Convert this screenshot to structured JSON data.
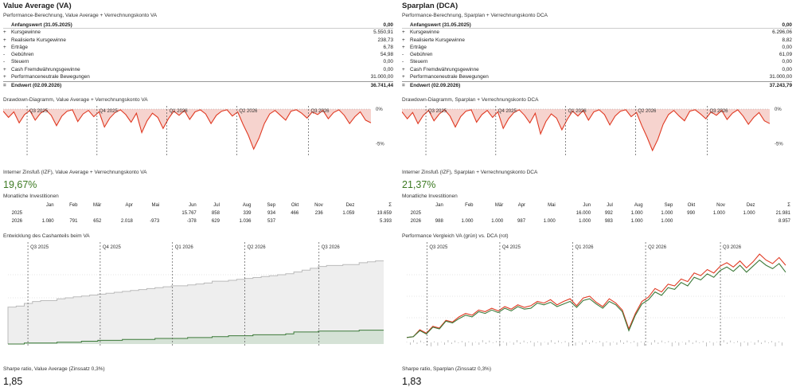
{
  "left": {
    "title": "Value Average (VA)",
    "perf_subtitle": "Performance-Berechnung, Value Average + Verrechnungskonto VA",
    "perf_rows": [
      {
        "op": "",
        "label": "Anfangswert (31.05.2025)",
        "value": "0,00",
        "kind": "start"
      },
      {
        "op": "+",
        "label": "Kursgewinne",
        "value": "5.550,91",
        "kind": ""
      },
      {
        "op": "+",
        "label": "Realisierte Kursgewinne",
        "value": "238,73",
        "kind": ""
      },
      {
        "op": "+",
        "label": "Erträge",
        "value": "6,78",
        "kind": ""
      },
      {
        "op": "-",
        "label": "Gebühren",
        "value": "54,98",
        "kind": ""
      },
      {
        "op": "-",
        "label": "Steuern",
        "value": "0,00",
        "kind": ""
      },
      {
        "op": "+",
        "label": "Cash Fremdwährungsgewinne",
        "value": "0,00",
        "kind": ""
      },
      {
        "op": "+",
        "label": "Performanceneutrale Bewegungen",
        "value": "31.000,00",
        "kind": ""
      },
      {
        "op": "=",
        "label": "Endwert (02.09.2026)",
        "value": "36.741,44",
        "kind": "end"
      }
    ],
    "dd_subtitle": "Drawdown-Diagramm, Value Average + Verrechnungskonto VA",
    "irr_subtitle": "Interner Zinsfuß (IZF), Value Average + Verrechnungskonto VA",
    "irr_value": "19,67%",
    "inv_subtitle": "Monatliche Investitionen",
    "inv_header": [
      "",
      "Jan",
      "Feb",
      "Mär",
      "Apr",
      "Mai",
      "Jun",
      "Jul",
      "Aug",
      "Sep",
      "Okt",
      "Nov",
      "Dez",
      "Σ"
    ],
    "inv_rows": [
      [
        "2025",
        "",
        "",
        "",
        "",
        "",
        "15.767",
        "858",
        "339",
        "934",
        "466",
        "236",
        "1.059",
        "19.659"
      ],
      [
        "2026",
        "1.080",
        "791",
        "652",
        "2.018",
        "-973",
        "-378",
        "629",
        "1.036",
        "537",
        "",
        "",
        "",
        "5.393"
      ]
    ],
    "bottom_subtitle": "Entwicklung des Cashanteils beim VA",
    "sharpe_subtitle": "Sharpe ratio, Value Average (Zinssatz 0,3%)",
    "sharpe_value": "1,85"
  },
  "right": {
    "title": "Sparplan (DCA)",
    "perf_subtitle": "Performance-Berechnung, Sparplan + Verrechnungskonto DCA",
    "perf_rows": [
      {
        "op": "",
        "label": "Anfangswert (31.05.2025)",
        "value": "0,00",
        "kind": "start"
      },
      {
        "op": "+",
        "label": "Kursgewinne",
        "value": "6.296,06",
        "kind": ""
      },
      {
        "op": "+",
        "label": "Realisierte Kursgewinne",
        "value": "8,82",
        "kind": ""
      },
      {
        "op": "+",
        "label": "Erträge",
        "value": "0,00",
        "kind": ""
      },
      {
        "op": "-",
        "label": "Gebühren",
        "value": "61,09",
        "kind": ""
      },
      {
        "op": "-",
        "label": "Steuern",
        "value": "0,00",
        "kind": ""
      },
      {
        "op": "+",
        "label": "Cash Fremdwährungsgewinne",
        "value": "0,00",
        "kind": ""
      },
      {
        "op": "+",
        "label": "Performanceneutrale Bewegungen",
        "value": "31.000,00",
        "kind": ""
      },
      {
        "op": "=",
        "label": "Endwert (02.09.2026)",
        "value": "37.243,79",
        "kind": "end"
      }
    ],
    "dd_subtitle": "Drawdown-Diagramm, Sparplan + Verrechnungskonto DCA",
    "irr_subtitle": "Interner Zinsfuß (IZF), Sparplan + Verrechnungskonto DCA",
    "irr_value": "21,37%",
    "inv_subtitle": "Monatliche Investitionen",
    "inv_header": [
      "",
      "Jan",
      "Feb",
      "Mär",
      "Apr",
      "Mai",
      "Jun",
      "Jul",
      "Aug",
      "Sep",
      "Okt",
      "Nov",
      "Dez",
      "Σ"
    ],
    "inv_rows": [
      [
        "2025",
        "",
        "",
        "",
        "",
        "",
        "16.000",
        "992",
        "1.000",
        "1.000",
        "990",
        "1.000",
        "1.000",
        "21.981"
      ],
      [
        "2026",
        "988",
        "1.000",
        "1.000",
        "987",
        "1.000",
        "1.000",
        "983",
        "1.000",
        "1.000",
        "",
        "",
        "",
        "8.957"
      ]
    ],
    "bottom_subtitle": "Performance Vergleich VA (grün) vs. DCA (rot)",
    "sharpe_subtitle": "Sharpe ratio, Sparplan (Zinssatz 0,3%)",
    "sharpe_value": "1,83"
  },
  "chart_data": [
    {
      "type": "area",
      "id": "dd-left",
      "quarter_labels": [
        "Q3 2025",
        "Q4 2025",
        "Q1 2026",
        "Q2 2026",
        "Q3 2026"
      ],
      "y_tick_labels": [
        "0%",
        "-5%"
      ],
      "ylim": [
        -6,
        0
      ],
      "series": [
        {
          "values": [
            -0.3,
            -1.2,
            -0.4,
            -2.0,
            -0.8,
            -0.2,
            -1.6,
            -0.6,
            -0.1,
            -0.9,
            -2.4,
            -1.0,
            -0.3,
            -0.1,
            -1.8,
            -0.7,
            -0.2,
            -1.1,
            -0.4,
            -2.6,
            -1.3,
            -0.5,
            -0.1,
            -0.8,
            -1.9,
            -0.6,
            -3.4,
            -1.7,
            -0.6,
            -1.2,
            -2.8,
            -1.4,
            -0.3,
            -0.9,
            -0.2,
            -1.5,
            -0.4,
            -0.1,
            -0.7,
            -2.1,
            -0.9,
            -0.3,
            -0.1,
            -1.0,
            -0.4,
            -2.2,
            -3.8,
            -5.8,
            -4.2,
            -2.1,
            -0.7,
            -0.2,
            -0.9,
            -1.6,
            -0.3,
            -0.1,
            -0.6,
            -1.3,
            -0.4,
            -0.8,
            -0.2,
            -1.4,
            -0.5,
            -0.1,
            -0.9,
            -2.1,
            -1.1,
            -0.4,
            -1.6,
            -2.0
          ]
        }
      ]
    },
    {
      "type": "area",
      "id": "dd-right",
      "quarter_labels": [
        "Q3 2025",
        "Q4 2025",
        "Q1 2026",
        "Q2 2026",
        "Q3 2026"
      ],
      "y_tick_labels": [
        "0%",
        "-5%"
      ],
      "ylim": [
        -6,
        0
      ],
      "series": [
        {
          "values": [
            -0.4,
            -1.4,
            -0.5,
            -2.1,
            -0.9,
            -0.2,
            -1.7,
            -0.7,
            -0.1,
            -1.0,
            -2.6,
            -1.1,
            -0.3,
            -0.1,
            -1.9,
            -0.8,
            -0.2,
            -1.2,
            -0.4,
            -2.8,
            -1.4,
            -0.5,
            -0.1,
            -0.9,
            -2.0,
            -0.6,
            -3.6,
            -1.8,
            -0.7,
            -1.3,
            -3.0,
            -1.5,
            -0.3,
            -1.0,
            -0.2,
            -1.6,
            -0.4,
            -0.1,
            -0.8,
            -2.3,
            -1.0,
            -0.3,
            -0.1,
            -1.1,
            -0.5,
            -2.4,
            -4.1,
            -6.0,
            -4.4,
            -2.2,
            -0.8,
            -0.2,
            -1.0,
            -1.7,
            -0.3,
            -0.1,
            -0.7,
            -1.4,
            -0.4,
            -0.9,
            -0.2,
            -1.5,
            -0.6,
            -0.1,
            -1.0,
            -2.2,
            -1.2,
            -0.5,
            -1.7,
            -2.1
          ]
        }
      ]
    },
    {
      "type": "area",
      "id": "cash-left",
      "quarter_labels": [
        "Q3 2025",
        "Q4 2025",
        "Q1 2026",
        "Q2 2026",
        "Q3 2026"
      ],
      "series": [
        {
          "values": [
            0.4,
            0.41,
            0.44,
            0.46,
            0.47,
            0.47,
            0.49,
            0.5,
            0.51,
            0.52,
            0.53,
            0.54,
            0.55,
            0.56,
            0.57,
            0.58,
            0.59,
            0.6,
            0.61,
            0.62,
            0.63,
            0.63,
            0.64,
            0.65,
            0.66,
            0.68,
            0.68,
            0.69,
            0.7,
            0.71,
            0.72,
            0.73,
            0.74,
            0.75,
            0.76,
            0.78,
            0.8,
            0.82,
            0.84,
            0.85,
            0.85,
            0.86,
            0.86,
            0.88,
            0.89,
            0.9,
            0.9
          ]
        },
        {
          "values": [
            0.0,
            0.0,
            0.01,
            0.01,
            0.01,
            0.01,
            0.02,
            0.02,
            0.02,
            0.03,
            0.03,
            0.04,
            0.04,
            0.04,
            0.05,
            0.05,
            0.05,
            0.05,
            0.06,
            0.06,
            0.06,
            0.06,
            0.07,
            0.07,
            0.07,
            0.08,
            0.08,
            0.09,
            0.09,
            0.09,
            0.1,
            0.1,
            0.1,
            0.1,
            0.11,
            0.13,
            0.13,
            0.13,
            0.14,
            0.14,
            0.14,
            0.14,
            0.14,
            0.15,
            0.15,
            0.15,
            0.15
          ]
        }
      ]
    },
    {
      "type": "line",
      "id": "perf-right",
      "quarter_labels": [
        "Q3 2025",
        "Q4 2025",
        "Q1 2026",
        "Q2 2026",
        "Q3 2026"
      ],
      "series": [
        {
          "values": [
            0.02,
            0.03,
            0.1,
            0.06,
            0.14,
            0.12,
            0.21,
            0.19,
            0.24,
            0.28,
            0.26,
            0.32,
            0.3,
            0.34,
            0.31,
            0.36,
            0.33,
            0.38,
            0.35,
            0.36,
            0.42,
            0.4,
            0.43,
            0.38,
            0.41,
            0.44,
            0.37,
            0.45,
            0.47,
            0.41,
            0.36,
            0.44,
            0.4,
            0.32,
            0.1,
            0.28,
            0.41,
            0.46,
            0.55,
            0.51,
            0.6,
            0.58,
            0.66,
            0.62,
            0.72,
            0.69,
            0.76,
            0.72,
            0.8,
            0.84,
            0.79,
            0.86,
            0.78,
            0.85,
            0.92,
            0.86,
            0.82,
            0.88,
            0.78
          ]
        },
        {
          "values": [
            0.02,
            0.03,
            0.11,
            0.07,
            0.15,
            0.13,
            0.22,
            0.2,
            0.26,
            0.3,
            0.28,
            0.34,
            0.32,
            0.36,
            0.33,
            0.38,
            0.35,
            0.4,
            0.37,
            0.39,
            0.44,
            0.42,
            0.46,
            0.4,
            0.44,
            0.47,
            0.39,
            0.48,
            0.5,
            0.43,
            0.38,
            0.47,
            0.42,
            0.34,
            0.12,
            0.3,
            0.44,
            0.49,
            0.59,
            0.55,
            0.64,
            0.62,
            0.7,
            0.67,
            0.77,
            0.74,
            0.81,
            0.77,
            0.85,
            0.89,
            0.84,
            0.91,
            0.83,
            0.9,
            0.99,
            0.92,
            0.88,
            0.95,
            0.86
          ]
        }
      ]
    }
  ],
  "colors": {
    "red": "#e03a23",
    "red_fill": "#f6d3ce",
    "green": "#3d7a3a",
    "green_fill": "#d5e2d6",
    "grey_fill": "#eeeeee",
    "grey_line": "#bbbbbb"
  }
}
